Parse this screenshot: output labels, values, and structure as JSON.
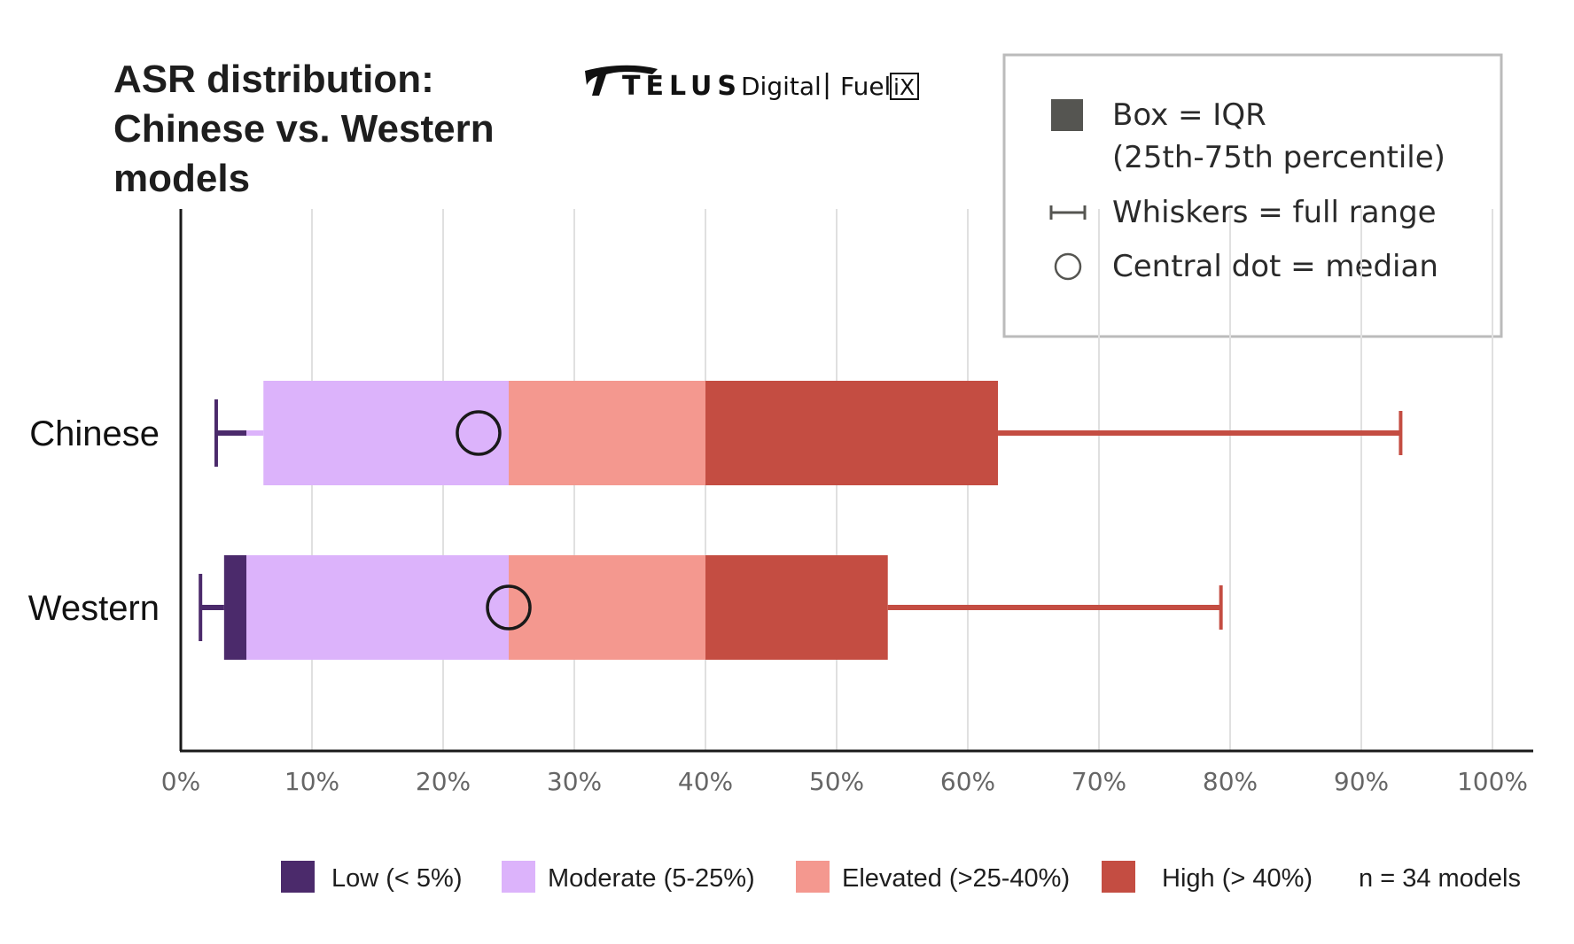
{
  "brand": {
    "company": "TELUS",
    "division": "Digital",
    "separator": "|",
    "product": "Fuel",
    "product_badge": "iX"
  },
  "legend_box": {
    "box_line1": "Box = IQR",
    "box_line2": "(25th-75th percentile)",
    "whisker": "Whiskers = full range",
    "median": "Central dot = median"
  },
  "colors": {
    "low": "#4b2a6b",
    "moderate": "#dcb3fb",
    "elevated": "#f4988f",
    "high": "#c44d42",
    "box_legend": "#555551",
    "axis": "#1a1a1a",
    "grid": "#e0e0e0"
  },
  "chart_data": {
    "type": "box",
    "orientation": "horizontal",
    "title": "ASR distribution: Chinese vs. Western models",
    "title_lines": [
      "ASR distribution:",
      "Chinese vs. Western",
      "models"
    ],
    "categories": [
      "Chinese",
      "Western"
    ],
    "boxes": [
      {
        "name": "Chinese",
        "min": 2.7,
        "q1": 6.3,
        "median": 22.7,
        "q3": 62.3,
        "max": 93.0
      },
      {
        "name": "Western",
        "min": 1.5,
        "q1": 3.3,
        "median": 25.0,
        "q3": 53.9,
        "max": 79.3
      }
    ],
    "xlim": [
      0,
      100
    ],
    "x_ticks": [
      0,
      10,
      20,
      30,
      40,
      50,
      60,
      70,
      80,
      90,
      100
    ],
    "x_tick_labels": [
      "0%",
      "10%",
      "20%",
      "30%",
      "40%",
      "50%",
      "60%",
      "70%",
      "80%",
      "90%",
      "100%"
    ],
    "grid": true,
    "legend_position": "top-right",
    "bands": [
      {
        "name": "Low (< 5%)",
        "key": "low",
        "from": 0,
        "to": 5
      },
      {
        "name": "Moderate (5-25%)",
        "key": "moderate",
        "from": 5,
        "to": 25
      },
      {
        "name": "Elevated (>25-40%)",
        "key": "elevated",
        "from": 25,
        "to": 40
      },
      {
        "name": "High (> 40%)",
        "key": "high",
        "from": 40,
        "to": 100
      }
    ],
    "note": "n = 34 models"
  }
}
